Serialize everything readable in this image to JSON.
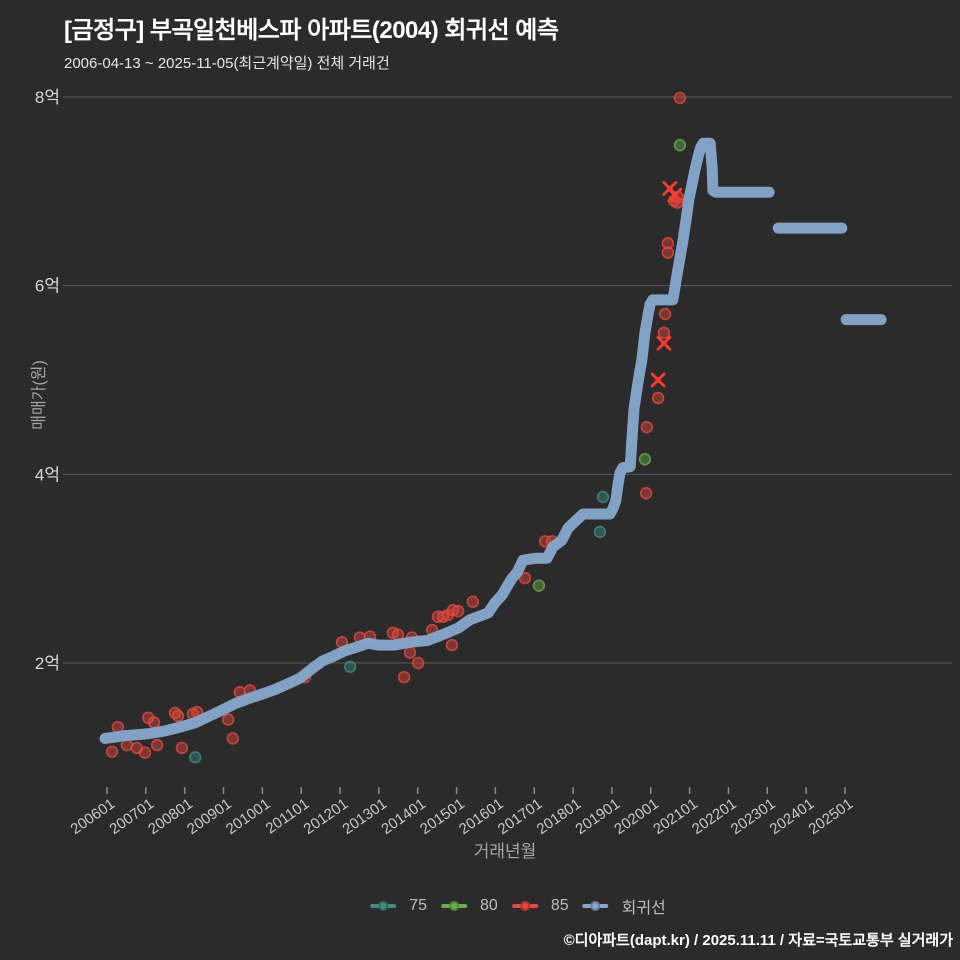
{
  "header": {
    "title": "[금정구] 부곡일천베스파 아파트(2004) 회귀선 예측",
    "subtitle": "2006-04-13 ~ 2025-11-05(최근계약일) 전체 거래건"
  },
  "footer": {
    "credit": "©디아파트(dapt.kr) / 2025.11.11 / 자료=국토교통부 실거래가"
  },
  "legend": {
    "items": [
      {
        "label": "75",
        "color": "#3f8d83"
      },
      {
        "label": "80",
        "color": "#69b04b"
      },
      {
        "label": "85",
        "color": "#e8483f"
      },
      {
        "label": "회귀선",
        "color": "#86a8cd"
      }
    ]
  },
  "chart_data": {
    "type": "scatter",
    "title": "[금정구] 부곡일천베스파 아파트(2004) 회귀선 예측",
    "xlabel": "거래년월",
    "ylabel": "매매가(원)",
    "x_unit": "decimal year (yyyymm)",
    "y_unit": "억원",
    "xlim": [
      2005.8,
      2026.7
    ],
    "ylim": [
      0.55,
      8.45
    ],
    "x_ticks": [
      "200601",
      "200701",
      "200801",
      "200901",
      "201001",
      "201101",
      "201201",
      "201301",
      "201401",
      "201501",
      "201601",
      "201701",
      "201801",
      "201901",
      "202001",
      "202101",
      "202201",
      "202301",
      "202401",
      "202501"
    ],
    "y_ticks": [
      {
        "label": "2억",
        "value": 2
      },
      {
        "label": "4억",
        "value": 4
      },
      {
        "label": "6억",
        "value": 6
      },
      {
        "label": "8억",
        "value": 8
      }
    ],
    "grid": true,
    "legend_position": "bottom",
    "series": [
      {
        "name": "75",
        "color": "#3f8d83",
        "marker": "circle",
        "points": [
          [
            2008.27,
            1.0
          ],
          [
            2012.26,
            1.96
          ],
          [
            2018.69,
            3.39
          ],
          [
            2018.77,
            3.76
          ]
        ]
      },
      {
        "name": "80",
        "color": "#69b04b",
        "marker": "circle",
        "points": [
          [
            2017.12,
            2.82
          ],
          [
            2019.85,
            4.16
          ],
          [
            2020.75,
            7.49
          ]
        ]
      },
      {
        "name": "85",
        "color": "#e8483f",
        "marker": "circle",
        "points": [
          [
            2006.13,
            1.06
          ],
          [
            2006.28,
            1.32
          ],
          [
            2006.51,
            1.13
          ],
          [
            2006.77,
            1.1
          ],
          [
            2006.98,
            1.05
          ],
          [
            2007.06,
            1.42
          ],
          [
            2007.21,
            1.37
          ],
          [
            2007.29,
            1.13
          ],
          [
            2007.75,
            1.47
          ],
          [
            2007.83,
            1.44
          ],
          [
            2007.93,
            1.1
          ],
          [
            2008.21,
            1.46
          ],
          [
            2008.32,
            1.48
          ],
          [
            2009.12,
            1.4
          ],
          [
            2009.24,
            1.2
          ],
          [
            2009.42,
            1.69
          ],
          [
            2009.68,
            1.71
          ],
          [
            2011.1,
            1.85
          ],
          [
            2012.05,
            2.22
          ],
          [
            2012.51,
            2.27
          ],
          [
            2012.77,
            2.28
          ],
          [
            2013.36,
            2.32
          ],
          [
            2013.49,
            2.3
          ],
          [
            2013.65,
            1.85
          ],
          [
            2013.8,
            2.11
          ],
          [
            2013.85,
            2.27
          ],
          [
            2014.01,
            2.0
          ],
          [
            2014.37,
            2.35
          ],
          [
            2014.52,
            2.49
          ],
          [
            2014.65,
            2.49
          ],
          [
            2014.78,
            2.51
          ],
          [
            2014.88,
            2.19
          ],
          [
            2014.91,
            2.56
          ],
          [
            2015.04,
            2.55
          ],
          [
            2015.42,
            2.65
          ],
          [
            2016.76,
            2.9
          ],
          [
            2017.28,
            3.29
          ],
          [
            2017.46,
            3.29
          ],
          [
            2019.88,
            3.8
          ],
          [
            2019.9,
            4.5
          ],
          [
            2020.19,
            4.81
          ],
          [
            2020.34,
            5.5
          ],
          [
            2020.37,
            5.7
          ],
          [
            2020.44,
            6.45
          ],
          [
            2020.44,
            6.35
          ],
          [
            2020.6,
            6.9
          ],
          [
            2020.68,
            6.88
          ],
          [
            2020.7,
            6.94
          ],
          [
            2020.75,
            7.99
          ]
        ]
      },
      {
        "name": "85-x-marks",
        "color": "#ff3b30",
        "marker": "x",
        "points": [
          [
            2020.19,
            5.0
          ],
          [
            2020.34,
            5.39
          ],
          [
            2020.49,
            7.03
          ],
          [
            2020.62,
            6.96
          ]
        ]
      }
    ],
    "regression_line": {
      "name": "회귀선",
      "color": "#86a8cd",
      "width": 11,
      "segments": [
        [
          [
            2005.95,
            1.2
          ],
          [
            2006.46,
            1.23
          ],
          [
            2007.06,
            1.25
          ],
          [
            2007.49,
            1.28
          ],
          [
            2007.88,
            1.32
          ],
          [
            2008.29,
            1.37
          ],
          [
            2008.65,
            1.44
          ],
          [
            2008.96,
            1.5
          ],
          [
            2009.3,
            1.57
          ],
          [
            2009.63,
            1.62
          ],
          [
            2009.99,
            1.67
          ],
          [
            2010.33,
            1.72
          ],
          [
            2010.66,
            1.78
          ],
          [
            2010.97,
            1.84
          ],
          [
            2011.28,
            1.94
          ],
          [
            2011.54,
            2.02
          ],
          [
            2011.82,
            2.07
          ],
          [
            2012.13,
            2.13
          ],
          [
            2012.44,
            2.17
          ],
          [
            2012.72,
            2.21
          ],
          [
            2012.98,
            2.19
          ],
          [
            2013.39,
            2.19
          ],
          [
            2013.8,
            2.22
          ],
          [
            2014.26,
            2.24
          ],
          [
            2014.7,
            2.31
          ],
          [
            2015.04,
            2.37
          ],
          [
            2015.35,
            2.46
          ],
          [
            2015.55,
            2.49
          ],
          [
            2015.81,
            2.53
          ],
          [
            2015.99,
            2.64
          ],
          [
            2016.17,
            2.72
          ],
          [
            2016.43,
            2.9
          ],
          [
            2016.56,
            2.96
          ],
          [
            2016.71,
            3.09
          ],
          [
            2017.02,
            3.11
          ],
          [
            2017.33,
            3.11
          ],
          [
            2017.48,
            3.23
          ],
          [
            2017.71,
            3.3
          ],
          [
            2017.87,
            3.43
          ],
          [
            2018.1,
            3.52
          ],
          [
            2018.26,
            3.58
          ],
          [
            2018.95,
            3.58
          ],
          [
            2019.03,
            3.64
          ],
          [
            2019.1,
            3.72
          ],
          [
            2019.16,
            3.9
          ],
          [
            2019.21,
            4.02
          ],
          [
            2019.28,
            4.07
          ],
          [
            2019.47,
            4.08
          ],
          [
            2019.52,
            4.4
          ],
          [
            2019.57,
            4.7
          ],
          [
            2019.64,
            4.89
          ],
          [
            2019.7,
            5.05
          ],
          [
            2019.77,
            5.21
          ],
          [
            2019.85,
            5.5
          ],
          [
            2019.93,
            5.69
          ],
          [
            2019.98,
            5.8
          ],
          [
            2020.05,
            5.85
          ],
          [
            2020.57,
            5.85
          ],
          [
            2020.67,
            6.1
          ],
          [
            2020.75,
            6.29
          ],
          [
            2020.83,
            6.48
          ],
          [
            2020.91,
            6.7
          ],
          [
            2020.98,
            6.91
          ],
          [
            2021.06,
            7.07
          ],
          [
            2021.14,
            7.23
          ],
          [
            2021.22,
            7.37
          ],
          [
            2021.29,
            7.47
          ],
          [
            2021.35,
            7.51
          ],
          [
            2021.53,
            7.51
          ],
          [
            2021.58,
            7.25
          ],
          [
            2021.6,
            7.01
          ],
          [
            2021.68,
            6.99
          ],
          [
            2023.05,
            6.99
          ]
        ],
        [
          [
            2023.28,
            6.61
          ],
          [
            2024.92,
            6.61
          ]
        ],
        [
          [
            2025.03,
            5.64
          ],
          [
            2025.93,
            5.64
          ]
        ]
      ]
    }
  }
}
